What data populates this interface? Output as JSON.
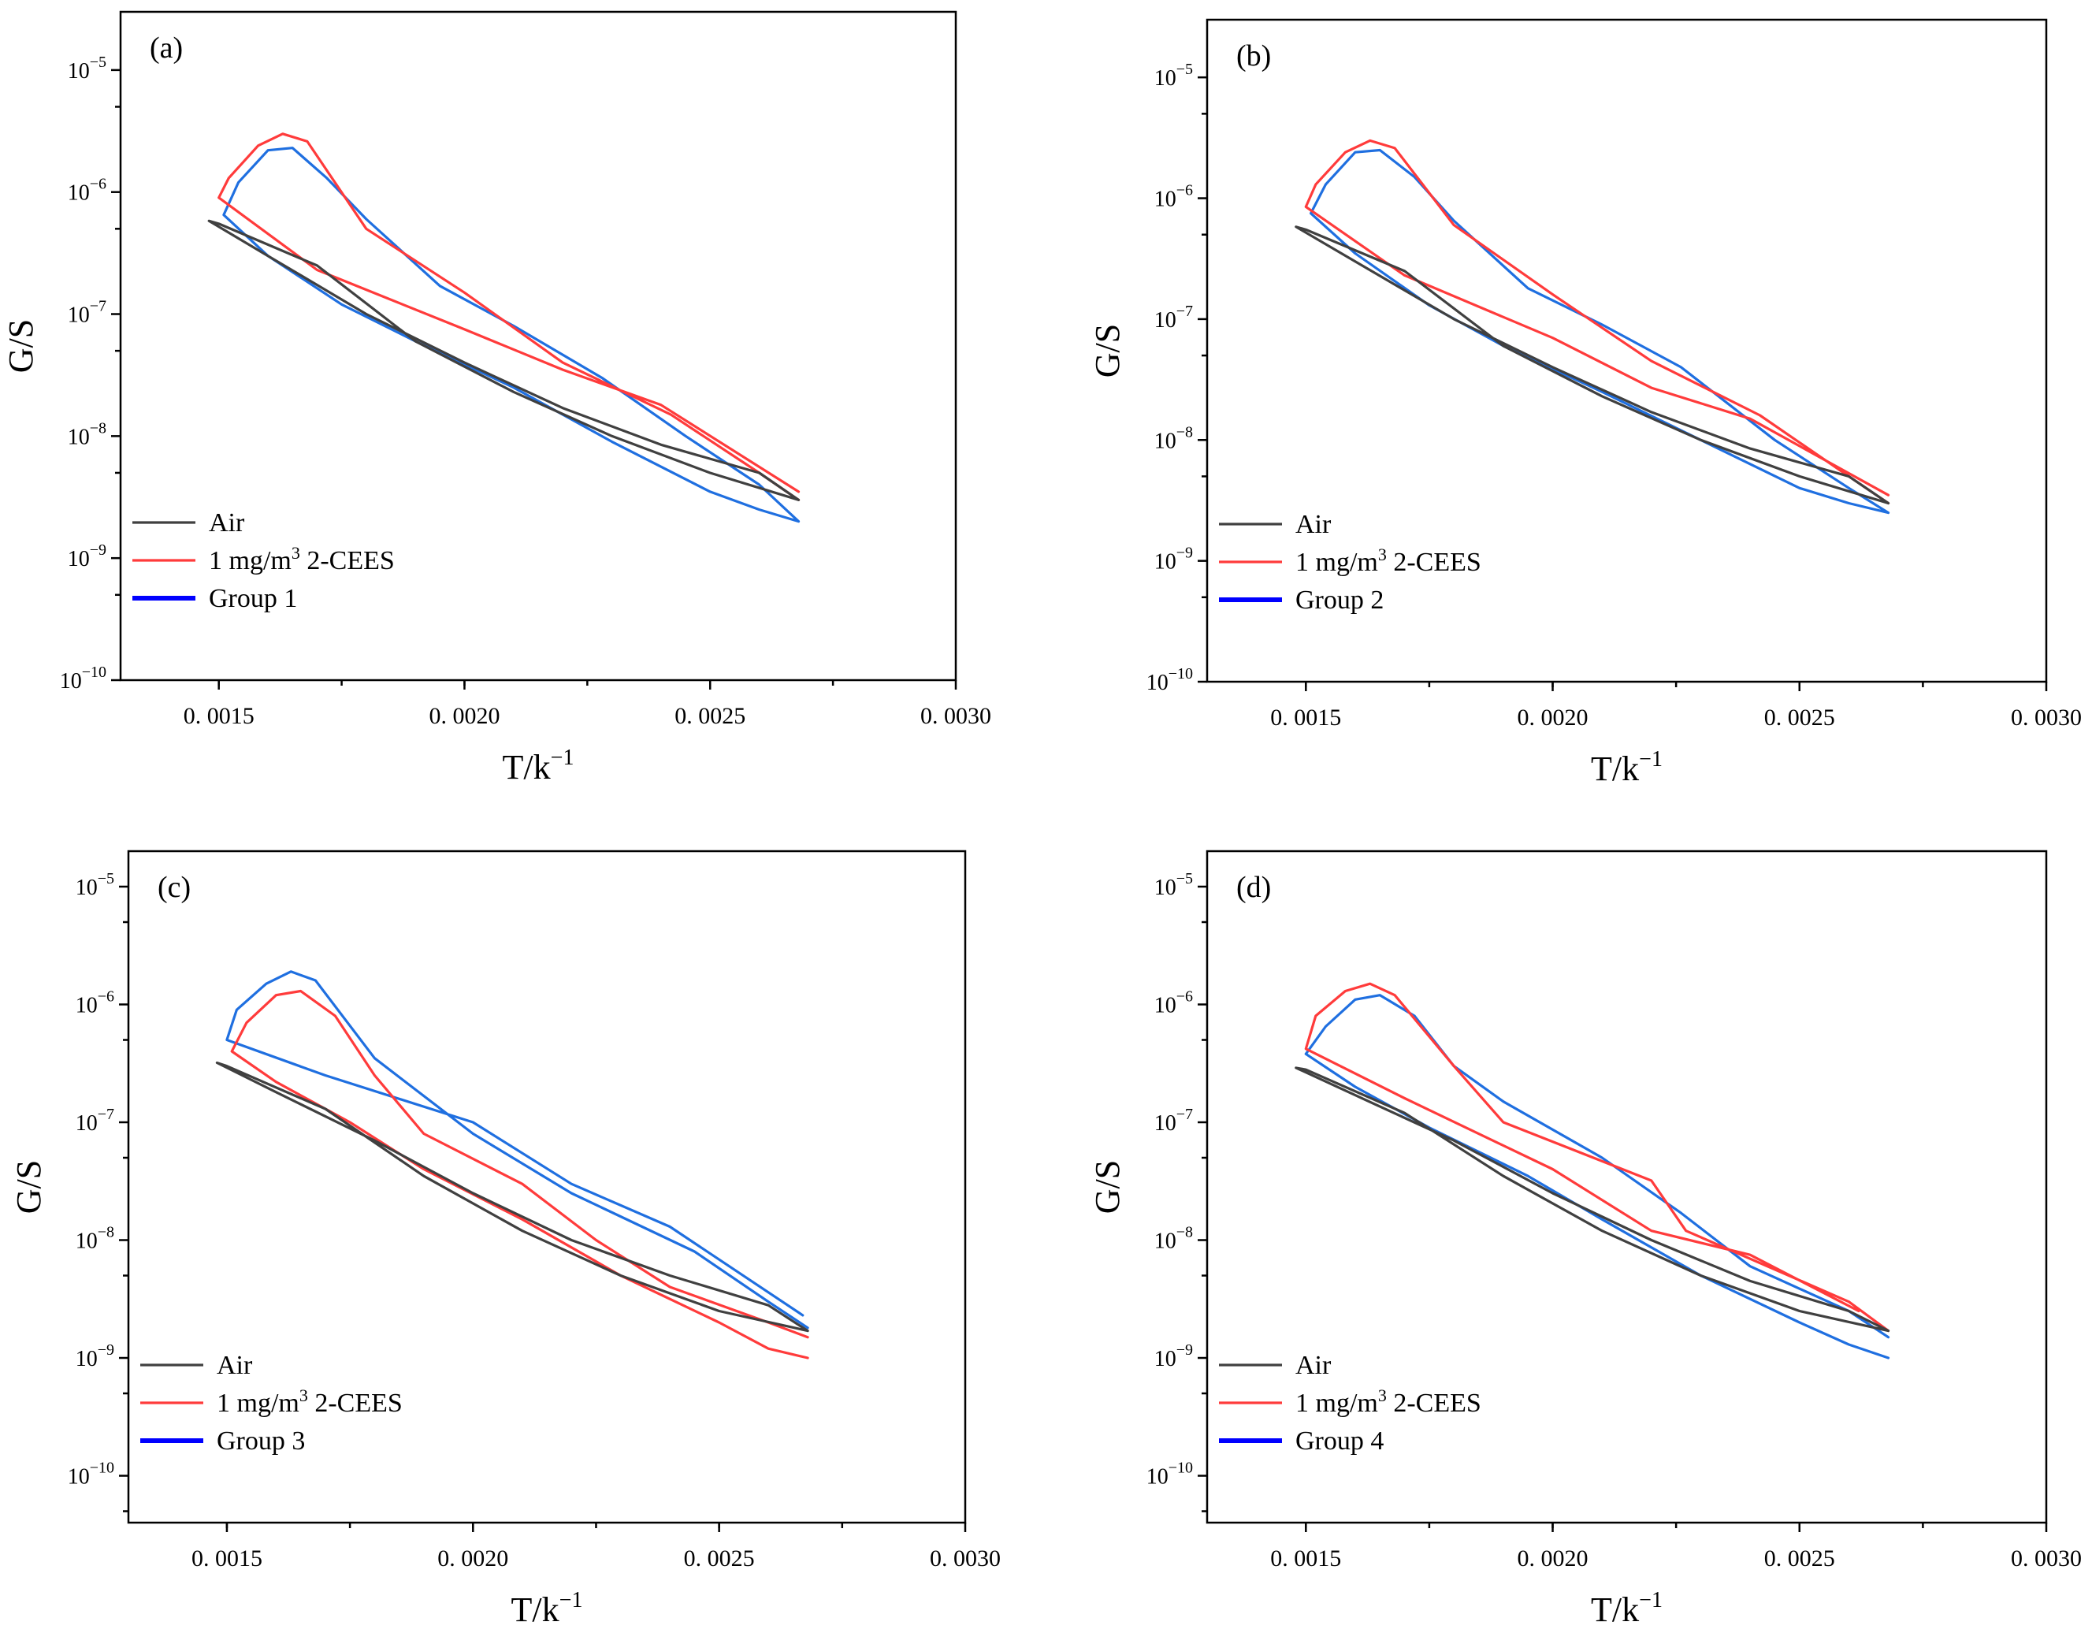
{
  "figure": {
    "panels": [
      "(a)",
      "(b)",
      "(c)",
      "(d)"
    ]
  },
  "colors": {
    "air": "#404040",
    "cees": "#ff3b3b",
    "group": "#1f6fe0",
    "legend_group": "#0000ff"
  },
  "chart_data": [
    {
      "type": "line",
      "panel_label": "(a)",
      "xlabel": "T/k",
      "xlabel_superscript": "−1",
      "ylabel": "G/S",
      "xlim": [
        0.0013,
        0.003
      ],
      "ylim": [
        1e-10,
        3e-05
      ],
      "yscale": "log",
      "x_ticks": [
        0.0015,
        0.002,
        0.0025,
        0.003
      ],
      "x_tick_labels": [
        "0. 0015",
        "0. 0020",
        "0. 0025",
        "0. 0030"
      ],
      "y_ticks": [
        1e-10,
        1e-09,
        1e-08,
        1e-07,
        1e-06,
        1e-05
      ],
      "y_tick_labels": [
        {
          "base": "10",
          "exp": "−10"
        },
        {
          "base": "10",
          "exp": "−9"
        },
        {
          "base": "10",
          "exp": "−8"
        },
        {
          "base": "10",
          "exp": "−7"
        },
        {
          "base": "10",
          "exp": "−6"
        },
        {
          "base": "10",
          "exp": "−5"
        }
      ],
      "legend_position": "lower-left",
      "series": [
        {
          "name": "Air",
          "color_key": "air",
          "x": [
            0.00268,
            0.0026,
            0.0024,
            0.0022,
            0.002,
            0.0018,
            0.0016,
            0.00148,
            0.0015,
            0.0017,
            0.0019,
            0.0021,
            0.0023,
            0.0025,
            0.00268
          ],
          "y": [
            3e-09,
            5e-09,
            8.5e-09,
            1.7e-08,
            4e-08,
            1e-07,
            3e-07,
            5.8e-07,
            5.5e-07,
            2.5e-07,
            6e-08,
            2.3e-08,
            1e-08,
            5e-09,
            3e-09
          ]
        },
        {
          "name": "1 mg/m3 2-CEES",
          "legend_label": "1 mg/m",
          "legend_sup": "3",
          "legend_suffix": " 2-CEES",
          "color_key": "cees",
          "x": [
            0.00268,
            0.0024,
            0.0022,
            0.002,
            0.0017,
            0.0015,
            0.00152,
            0.00158,
            0.00163,
            0.00168,
            0.0018,
            0.002,
            0.0022,
            0.00242,
            0.0026,
            0.00268
          ],
          "y": [
            3.5e-09,
            1.8e-08,
            3.5e-08,
            7.5e-08,
            2.3e-07,
            9e-07,
            1.3e-06,
            2.4e-06,
            3e-06,
            2.6e-06,
            5e-07,
            1.5e-07,
            4e-08,
            1.5e-08,
            5e-09,
            3e-09
          ]
        },
        {
          "name": "Group 1",
          "color_key": "group",
          "x": [
            0.00268,
            0.0026,
            0.0025,
            0.0023,
            0.0021,
            0.0019,
            0.00175,
            0.0016,
            0.00151,
            0.00154,
            0.0016,
            0.00165,
            0.00172,
            0.0018,
            0.00195,
            0.0021,
            0.00228,
            0.00245,
            0.0026,
            0.00268
          ],
          "y": [
            2e-09,
            2.5e-09,
            3.5e-09,
            9e-09,
            2.5e-08,
            6e-08,
            1.2e-07,
            3e-07,
            6.5e-07,
            1.2e-06,
            2.2e-06,
            2.3e-06,
            1.3e-06,
            6e-07,
            1.7e-07,
            8e-08,
            3e-08,
            1e-08,
            4e-09,
            2e-09
          ]
        }
      ]
    },
    {
      "type": "line",
      "panel_label": "(b)",
      "xlabel": "T/k",
      "xlabel_superscript": "−1",
      "ylabel": "G/S",
      "xlim": [
        0.0013,
        0.003
      ],
      "ylim": [
        1e-10,
        3e-05
      ],
      "yscale": "log",
      "x_ticks": [
        0.0015,
        0.002,
        0.0025,
        0.003
      ],
      "x_tick_labels": [
        "0. 0015",
        "0. 0020",
        "0. 0025",
        "0. 0030"
      ],
      "y_ticks": [
        1e-10,
        1e-09,
        1e-08,
        1e-07,
        1e-06,
        1e-05
      ],
      "y_tick_labels": [
        {
          "base": "10",
          "exp": "−10"
        },
        {
          "base": "10",
          "exp": "−9"
        },
        {
          "base": "10",
          "exp": "−8"
        },
        {
          "base": "10",
          "exp": "−7"
        },
        {
          "base": "10",
          "exp": "−6"
        },
        {
          "base": "10",
          "exp": "−5"
        }
      ],
      "legend_position": "lower-left",
      "series": [
        {
          "name": "Air",
          "color_key": "air",
          "x": [
            0.00268,
            0.0026,
            0.0024,
            0.0022,
            0.002,
            0.0018,
            0.0016,
            0.00148,
            0.0015,
            0.0017,
            0.0019,
            0.0021,
            0.0023,
            0.0025,
            0.00268
          ],
          "y": [
            3e-09,
            5e-09,
            8.5e-09,
            1.7e-08,
            4e-08,
            1e-07,
            3e-07,
            5.8e-07,
            5.5e-07,
            2.5e-07,
            6e-08,
            2.3e-08,
            1e-08,
            5e-09,
            3e-09
          ]
        },
        {
          "name": "1 mg/m3 2-CEES",
          "legend_label": "1 mg/m",
          "legend_sup": "3",
          "legend_suffix": " 2-CEES",
          "color_key": "cees",
          "x": [
            0.00268,
            0.0024,
            0.0022,
            0.002,
            0.0017,
            0.0015,
            0.00152,
            0.00158,
            0.00163,
            0.00168,
            0.0018,
            0.002,
            0.0022,
            0.00242,
            0.0026,
            0.00268
          ],
          "y": [
            3.5e-09,
            1.5e-08,
            2.7e-08,
            7e-08,
            2.3e-07,
            8.5e-07,
            1.3e-06,
            2.4e-06,
            3e-06,
            2.6e-06,
            6e-07,
            1.6e-07,
            4.5e-08,
            1.6e-08,
            5e-09,
            3e-09
          ]
        },
        {
          "name": "Group 2",
          "color_key": "group",
          "x": [
            0.00268,
            0.0026,
            0.0025,
            0.0023,
            0.0021,
            0.0019,
            0.00175,
            0.0016,
            0.00151,
            0.00154,
            0.0016,
            0.00165,
            0.00172,
            0.0018,
            0.00195,
            0.0021,
            0.00226,
            0.00245,
            0.0026,
            0.00268
          ],
          "y": [
            2.5e-09,
            3e-09,
            4e-09,
            1e-08,
            2.5e-08,
            6e-08,
            1.3e-07,
            3.5e-07,
            7.5e-07,
            1.3e-06,
            2.4e-06,
            2.5e-06,
            1.5e-06,
            6.5e-07,
            1.8e-07,
            9e-08,
            4e-08,
            1e-08,
            4e-09,
            2.5e-09
          ]
        }
      ]
    },
    {
      "type": "line",
      "panel_label": "(c)",
      "xlabel": "T/k",
      "xlabel_superscript": "−1",
      "ylabel": "G/S",
      "xlim": [
        0.0013,
        0.003
      ],
      "ylim": [
        4e-11,
        2e-05
      ],
      "yscale": "log",
      "x_ticks": [
        0.0015,
        0.002,
        0.0025,
        0.003
      ],
      "x_tick_labels": [
        "0. 0015",
        "0. 0020",
        "0. 0025",
        "0. 0030"
      ],
      "y_ticks": [
        1e-10,
        1e-09,
        1e-08,
        1e-07,
        1e-06,
        1e-05
      ],
      "y_tick_labels": [
        {
          "base": "10",
          "exp": "−10"
        },
        {
          "base": "10",
          "exp": "−9"
        },
        {
          "base": "10",
          "exp": "−8"
        },
        {
          "base": "10",
          "exp": "−7"
        },
        {
          "base": "10",
          "exp": "−6"
        },
        {
          "base": "10",
          "exp": "−5"
        }
      ],
      "legend_position": "lower-left",
      "series": [
        {
          "name": "Air",
          "color_key": "air",
          "x": [
            0.00268,
            0.0026,
            0.0024,
            0.0022,
            0.002,
            0.0018,
            0.0016,
            0.00148,
            0.0015,
            0.0017,
            0.0019,
            0.0021,
            0.0023,
            0.0025,
            0.00268
          ],
          "y": [
            1.7e-09,
            2.8e-09,
            5e-09,
            1e-08,
            2.5e-08,
            7e-08,
            1.8e-07,
            3.2e-07,
            3e-07,
            1.3e-07,
            3.5e-08,
            1.2e-08,
            5e-09,
            2.5e-09,
            1.7e-09
          ]
        },
        {
          "name": "1 mg/m3 2-CEES",
          "legend_label": "1 mg/m",
          "legend_sup": "3",
          "legend_suffix": " 2-CEES",
          "color_key": "cees",
          "x": [
            0.00268,
            0.0026,
            0.0025,
            0.0023,
            0.0021,
            0.0019,
            0.00175,
            0.0016,
            0.00151,
            0.00154,
            0.0016,
            0.00165,
            0.00172,
            0.0018,
            0.0019,
            0.0021,
            0.00225,
            0.0024,
            0.0026,
            0.00268
          ],
          "y": [
            1e-09,
            1.2e-09,
            2e-09,
            5e-09,
            1.5e-08,
            4e-08,
            1e-07,
            2.2e-07,
            4e-07,
            7e-07,
            1.2e-06,
            1.3e-06,
            8e-07,
            2.5e-07,
            8e-08,
            3e-08,
            1e-08,
            4e-09,
            2e-09,
            1.5e-09
          ]
        },
        {
          "name": "Group 3",
          "color_key": "group",
          "x": [
            0.00267,
            0.0024,
            0.0022,
            0.002,
            0.0017,
            0.0015,
            0.00152,
            0.00158,
            0.00163,
            0.00168,
            0.0018,
            0.002,
            0.0022,
            0.00245,
            0.0026,
            0.00268
          ],
          "y": [
            2.3e-09,
            1.3e-08,
            3e-08,
            1e-07,
            2.5e-07,
            5e-07,
            9e-07,
            1.5e-06,
            1.9e-06,
            1.6e-06,
            3.5e-07,
            8e-08,
            2.5e-08,
            8e-09,
            3e-09,
            1.8e-09
          ]
        }
      ]
    },
    {
      "type": "line",
      "panel_label": "(d)",
      "xlabel": "T/k",
      "xlabel_superscript": "−1",
      "ylabel": "G/S",
      "xlim": [
        0.0013,
        0.003
      ],
      "ylim": [
        4e-11,
        2e-05
      ],
      "yscale": "log",
      "x_ticks": [
        0.0015,
        0.002,
        0.0025,
        0.003
      ],
      "x_tick_labels": [
        "0. 0015",
        "0. 0020",
        "0. 0025",
        "0. 0030"
      ],
      "y_ticks": [
        1e-10,
        1e-09,
        1e-08,
        1e-07,
        1e-06,
        1e-05
      ],
      "y_tick_labels": [
        {
          "base": "10",
          "exp": "−10"
        },
        {
          "base": "10",
          "exp": "−9"
        },
        {
          "base": "10",
          "exp": "−8"
        },
        {
          "base": "10",
          "exp": "−7"
        },
        {
          "base": "10",
          "exp": "−6"
        },
        {
          "base": "10",
          "exp": "−5"
        }
      ],
      "legend_position": "lower-left",
      "series": [
        {
          "name": "Air",
          "color_key": "air",
          "x": [
            0.00268,
            0.0026,
            0.0024,
            0.0022,
            0.002,
            0.0018,
            0.0016,
            0.00148,
            0.0015,
            0.0017,
            0.0019,
            0.0021,
            0.0023,
            0.0025,
            0.00268
          ],
          "y": [
            1.7e-09,
            2.5e-09,
            4.5e-09,
            1e-08,
            2.5e-08,
            7e-08,
            1.7e-07,
            2.9e-07,
            2.8e-07,
            1.2e-07,
            3.5e-08,
            1.2e-08,
            5e-09,
            2.5e-09,
            1.7e-09
          ]
        },
        {
          "name": "1 mg/m3 2-CEES",
          "legend_label": "1 mg/m",
          "legend_sup": "3",
          "legend_suffix": " 2-CEES",
          "color_key": "cees",
          "x": [
            0.00262,
            0.0024,
            0.0022,
            0.002,
            0.0017,
            0.0015,
            0.00152,
            0.00158,
            0.00163,
            0.00168,
            0.0018,
            0.0019,
            0.0022,
            0.00227,
            0.0026,
            0.00268
          ],
          "y": [
            2.5e-09,
            7.5e-09,
            1.2e-08,
            4e-08,
            1.6e-07,
            4.2e-07,
            8e-07,
            1.3e-06,
            1.5e-06,
            1.2e-06,
            3e-07,
            1e-07,
            3.2e-08,
            1.2e-08,
            3e-09,
            1.7e-09
          ]
        },
        {
          "name": "Group 4",
          "color_key": "group",
          "x": [
            0.00268,
            0.0026,
            0.0025,
            0.0023,
            0.0021,
            0.00195,
            0.00175,
            0.0016,
            0.0015,
            0.00154,
            0.0016,
            0.00165,
            0.00172,
            0.0018,
            0.0019,
            0.0021,
            0.00226,
            0.0024,
            0.0026,
            0.00268
          ],
          "y": [
            1e-09,
            1.3e-09,
            2e-09,
            5e-09,
            1.5e-08,
            3.5e-08,
            9e-08,
            2e-07,
            3.8e-07,
            6.5e-07,
            1.1e-06,
            1.2e-06,
            8e-07,
            3e-07,
            1.5e-07,
            5e-08,
            1.7e-08,
            6e-09,
            2.5e-09,
            1.5e-09
          ]
        }
      ]
    }
  ]
}
